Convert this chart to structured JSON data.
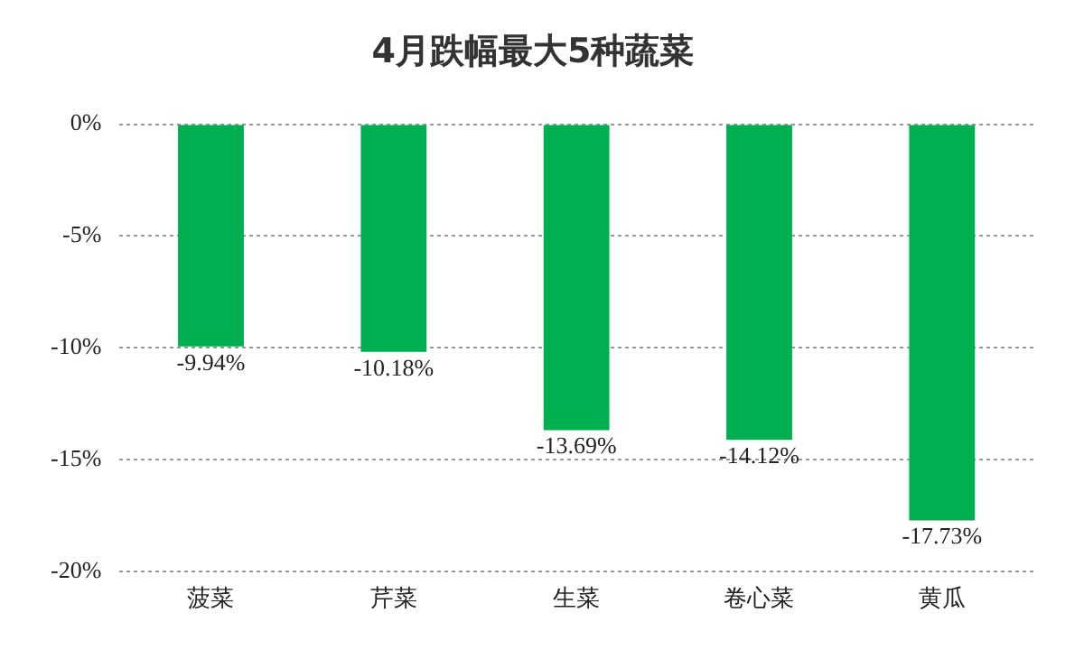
{
  "chart_data": {
    "type": "bar",
    "title": "4月跌幅最大5种蔬菜",
    "categories": [
      "菠菜",
      "芹菜",
      "生菜",
      "卷心菜",
      "黄瓜"
    ],
    "values": [
      -9.94,
      -10.18,
      -13.69,
      -14.12,
      -17.73
    ],
    "value_labels": [
      "-9.94%",
      "-10.18%",
      "-13.69%",
      "-14.12%",
      "-17.73%"
    ],
    "color": "#00b050",
    "ylim": [
      -20,
      0
    ],
    "yticks": [
      {
        "value": 0,
        "label": "0%"
      },
      {
        "value": -5,
        "label": "-5%"
      },
      {
        "value": -10,
        "label": "-10%"
      },
      {
        "value": -15,
        "label": "-15%"
      },
      {
        "value": -20,
        "label": "-20%"
      }
    ],
    "grid": "y"
  }
}
